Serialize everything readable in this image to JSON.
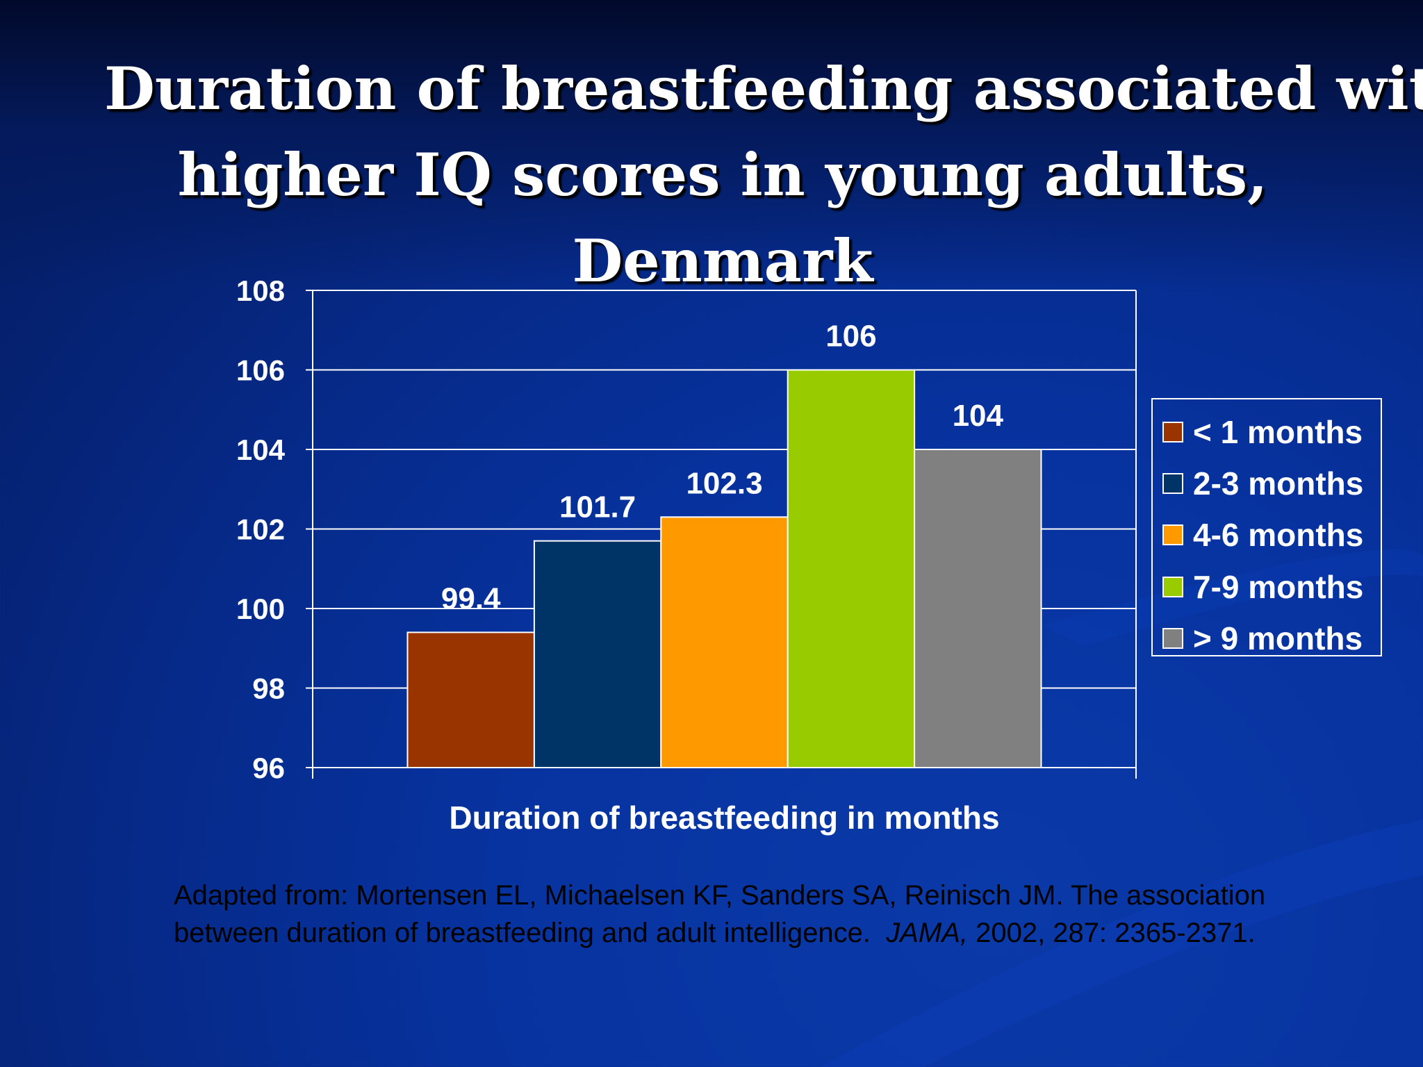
{
  "slide": {
    "title_lines": [
      "Duration of breastfeeding associated with",
      "higher IQ scores in young adults,",
      "Denmark"
    ],
    "citation_line1": "Adapted from: Mortensen EL, Michaelsen KF, Sanders SA, Reinisch JM. The association",
    "citation_line2_pre": "between duration of breastfeeding and adult intelligence.  ",
    "citation_journal": "JAMA,",
    "citation_line2_post": " 2002, 287: 2365-2371."
  },
  "chart_data": {
    "type": "bar",
    "title": "",
    "xlabel": "Duration of breastfeeding in months",
    "ylabel": "",
    "ylim": [
      96,
      108
    ],
    "yticks": [
      96,
      98,
      100,
      102,
      104,
      106,
      108
    ],
    "grid": true,
    "legend_position": "right",
    "series": [
      {
        "name": "< 1 months",
        "value": 99.4,
        "label": "99.4",
        "color": "#993300"
      },
      {
        "name": "2-3 months",
        "value": 101.7,
        "label": "101.7",
        "color": "#003366"
      },
      {
        "name": "4-6 months",
        "value": 102.3,
        "label": "102.3",
        "color": "#FF9900"
      },
      {
        "name": "7-9 months",
        "value": 106,
        "label": "106",
        "color": "#99CC00"
      },
      {
        "name": "> 9 months",
        "value": 104,
        "label": "104",
        "color": "#808080"
      }
    ]
  }
}
